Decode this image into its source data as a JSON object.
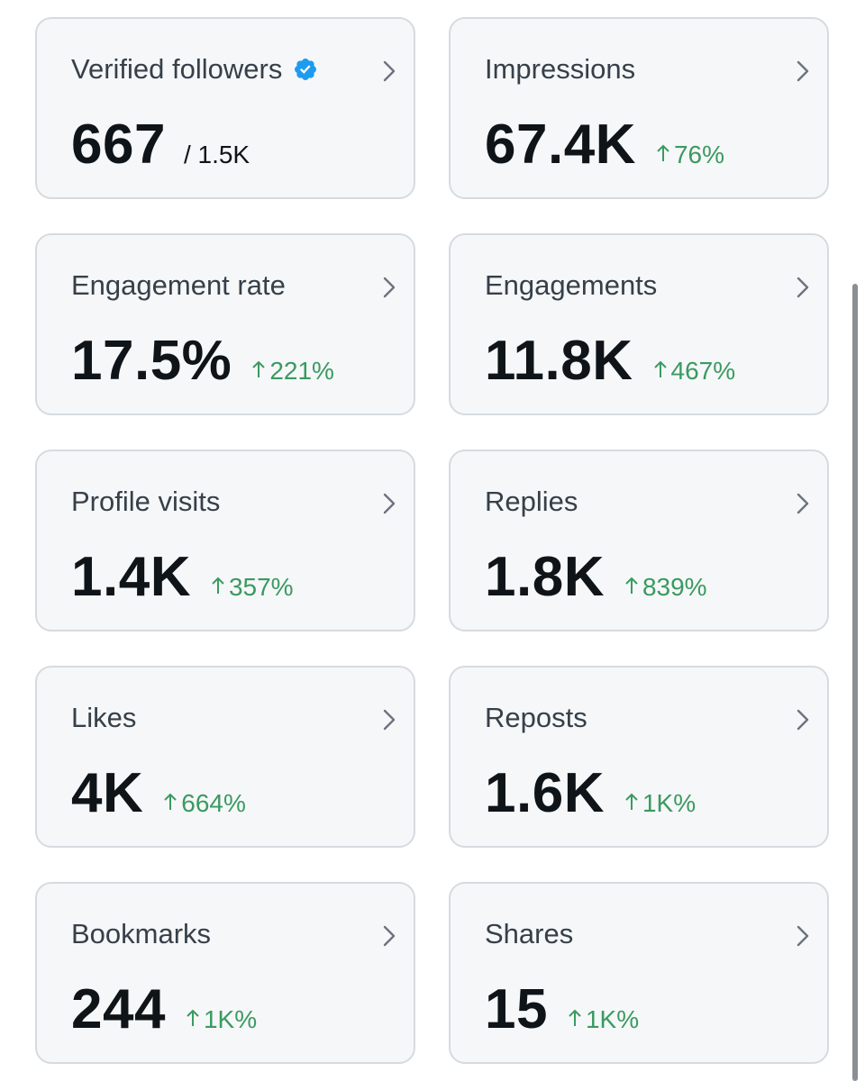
{
  "colors": {
    "card_background": "#f6f7f8",
    "card_border": "#d5dbe0",
    "title_text": "#36404a",
    "value_text": "#0f1419",
    "positive_change": "#3a9a61",
    "verified_badge": "#1d9bf0",
    "chevron": "#6b7480"
  },
  "icons": {
    "verified": "verified-badge-icon",
    "chevron": "chevron-right-icon",
    "change_arrow": "arrow-up-icon"
  },
  "cards": {
    "verified_followers": {
      "title": "Verified followers",
      "value": "667",
      "suffix": "/ 1.5K"
    },
    "impressions": {
      "title": "Impressions",
      "value": "67.4K",
      "change": "76%"
    },
    "engagement_rate": {
      "title": "Engagement rate",
      "value": "17.5%",
      "change": "221%"
    },
    "engagements": {
      "title": "Engagements",
      "value": "11.8K",
      "change": "467%"
    },
    "profile_visits": {
      "title": "Profile visits",
      "value": "1.4K",
      "change": "357%"
    },
    "replies": {
      "title": "Replies",
      "value": "1.8K",
      "change": "839%"
    },
    "likes": {
      "title": "Likes",
      "value": "4K",
      "change": "664%"
    },
    "reposts": {
      "title": "Reposts",
      "value": "1.6K",
      "change": "1K%"
    },
    "bookmarks": {
      "title": "Bookmarks",
      "value": "244",
      "change": "1K%"
    },
    "shares": {
      "title": "Shares",
      "value": "15",
      "change": "1K%"
    }
  }
}
